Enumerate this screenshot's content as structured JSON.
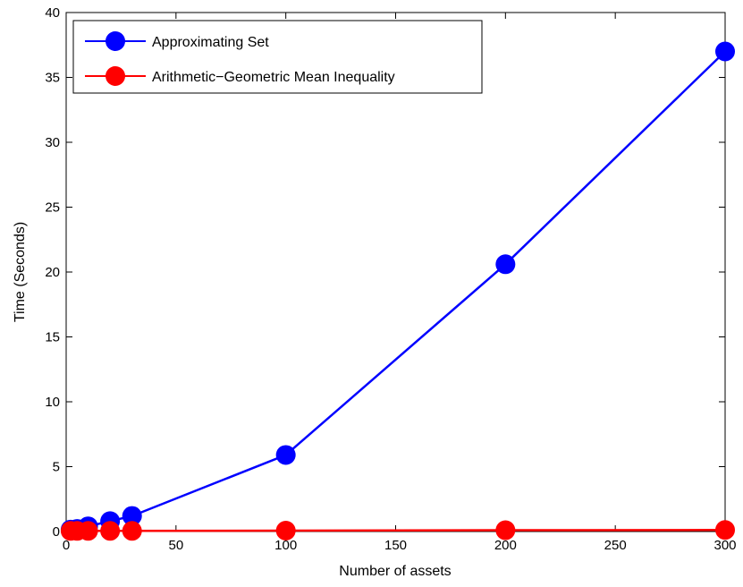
{
  "chart_data": {
    "type": "line",
    "title": "",
    "xlabel": "Number of assets",
    "ylabel": "Time (Seconds)",
    "xlim": [
      0,
      300
    ],
    "ylim": [
      0,
      40
    ],
    "xticks": [
      0,
      50,
      100,
      150,
      200,
      250,
      300
    ],
    "yticks": [
      0,
      5,
      10,
      15,
      20,
      25,
      30,
      35,
      40
    ],
    "grid": false,
    "legend_position": "top-left",
    "series": [
      {
        "name": "Approximating Set",
        "color": "#0000ff",
        "x": [
          2,
          5,
          10,
          20,
          30,
          100,
          200,
          300
        ],
        "y": [
          0.15,
          0.2,
          0.4,
          0.8,
          1.2,
          5.9,
          20.6,
          37.0
        ]
      },
      {
        "name": "Arithmetic−Geometric Mean Inequality",
        "color": "#ff0000",
        "x": [
          2,
          5,
          10,
          20,
          30,
          100,
          200,
          300
        ],
        "y": [
          0.05,
          0.05,
          0.05,
          0.05,
          0.05,
          0.07,
          0.1,
          0.12
        ]
      }
    ]
  }
}
